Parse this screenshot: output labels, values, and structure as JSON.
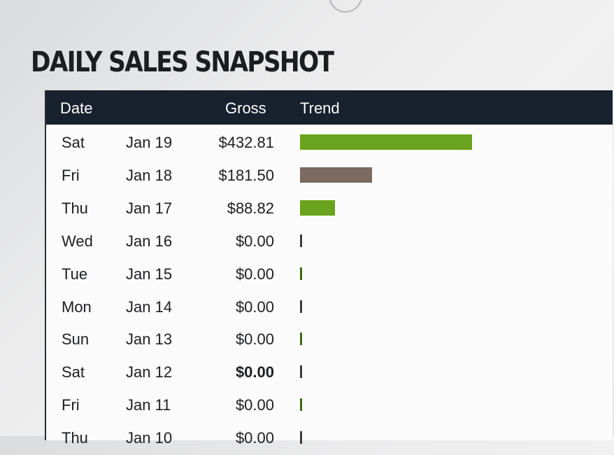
{
  "title": "DAILY SALES SNAPSHOT",
  "columns": {
    "date": "Date",
    "gross": "Gross",
    "trend": "Trend"
  },
  "colors": {
    "header_bg": "#18212e",
    "bar_green": "#6aa31d",
    "bar_brown": "#7a6a60"
  },
  "rows": [
    {
      "day": "Sat",
      "date": "Jan 19",
      "gross": "$432.81",
      "value": 432.81,
      "color": "#6aa31d"
    },
    {
      "day": "Fri",
      "date": "Jan 18",
      "gross": "$181.50",
      "value": 181.5,
      "color": "#7a6a60"
    },
    {
      "day": "Thu",
      "date": "Jan 17",
      "gross": "$88.82",
      "value": 88.82,
      "color": "#6aa31d"
    },
    {
      "day": "Wed",
      "date": "Jan 16",
      "gross": "$0.00",
      "value": 0,
      "color": "#7a6a60"
    },
    {
      "day": "Tue",
      "date": "Jan 15",
      "gross": "$0.00",
      "value": 0,
      "color": "#6aa31d"
    },
    {
      "day": "Mon",
      "date": "Jan 14",
      "gross": "$0.00",
      "value": 0,
      "color": "#7a6a60"
    },
    {
      "day": "Sun",
      "date": "Jan 13",
      "gross": "$0.00",
      "value": 0,
      "color": "#6aa31d"
    },
    {
      "day": "Sat",
      "date": "Jan 12",
      "gross": "$0.00",
      "value": 0,
      "color": "#7a6a60",
      "bold": true
    },
    {
      "day": "Fri",
      "date": "Jan 11",
      "gross": "$0.00",
      "value": 0,
      "color": "#6aa31d"
    },
    {
      "day": "Thu",
      "date": "Jan 10",
      "gross": "$0.00",
      "value": 0,
      "color": "#7a6a60"
    }
  ]
}
